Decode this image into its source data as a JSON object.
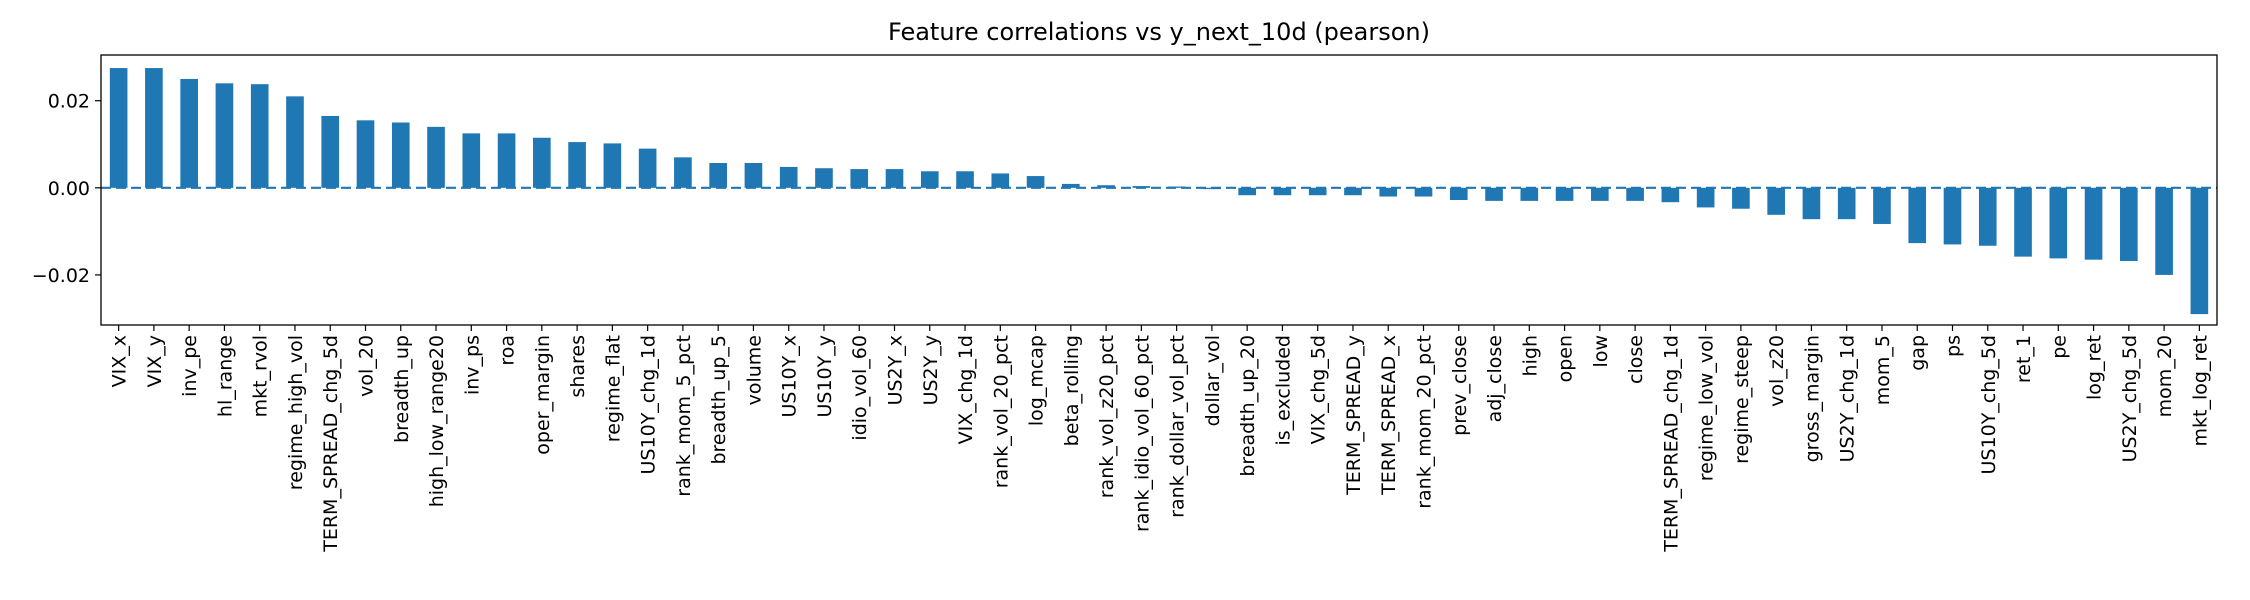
{
  "chart_data": {
    "type": "bar",
    "title": "Feature correlations vs y_next_10d (pearson)",
    "xlabel": "",
    "ylabel": "",
    "ylim": [
      -0.0315,
      0.0305
    ],
    "yticks": [
      0.02,
      0.0,
      -0.02
    ],
    "ytick_labels": [
      "0.02",
      "0.00",
      "−0.02"
    ],
    "reference_line": {
      "y": 0.0,
      "style": "dashed",
      "color": "#1f77b4"
    },
    "grid": false,
    "bar_color": "#1f77b4",
    "categories": [
      "VIX_x",
      "VIX_y",
      "inv_pe",
      "hl_range",
      "mkt_rvol",
      "regime_high_vol",
      "TERM_SPREAD_chg_5d",
      "vol_20",
      "breadth_up",
      "high_low_range20",
      "inv_ps",
      "roa",
      "oper_margin",
      "shares",
      "regime_flat",
      "US10Y_chg_1d",
      "rank_mom_5_pct",
      "breadth_up_5",
      "volume",
      "US10Y_x",
      "US10Y_y",
      "idio_vol_60",
      "US2Y_x",
      "US2Y_y",
      "VIX_chg_1d",
      "rank_vol_20_pct",
      "log_mcap",
      "beta_rolling",
      "rank_vol_z20_pct",
      "rank_idio_vol_60_pct",
      "rank_dollar_vol_pct",
      "dollar_vol",
      "breadth_up_20",
      "is_excluded",
      "VIX_chg_5d",
      "TERM_SPREAD_y",
      "TERM_SPREAD_x",
      "rank_mom_20_pct",
      "prev_close",
      "adj_close",
      "high",
      "open",
      "low",
      "close",
      "TERM_SPREAD_chg_1d",
      "regime_low_vol",
      "regime_steep",
      "vol_z20",
      "gross_margin",
      "US2Y_chg_1d",
      "mom_5",
      "gap",
      "ps",
      "US10Y_chg_5d",
      "ret_1",
      "pe",
      "log_ret",
      "US2Y_chg_5d",
      "mom_20",
      "mkt_log_ret"
    ],
    "values": [
      0.0275,
      0.0275,
      0.025,
      0.024,
      0.0238,
      0.021,
      0.0165,
      0.0155,
      0.015,
      0.014,
      0.0125,
      0.0125,
      0.0115,
      0.0105,
      0.0102,
      0.009,
      0.007,
      0.0057,
      0.0057,
      0.0048,
      0.0045,
      0.0043,
      0.0043,
      0.0038,
      0.0038,
      0.0033,
      0.0027,
      0.0009,
      0.0006,
      0.0004,
      0.0003,
      -0.0003,
      -0.0017,
      -0.0017,
      -0.0017,
      -0.0017,
      -0.002,
      -0.002,
      -0.0028,
      -0.003,
      -0.003,
      -0.003,
      -0.003,
      -0.003,
      -0.0033,
      -0.0045,
      -0.0048,
      -0.0062,
      -0.0072,
      -0.0072,
      -0.0083,
      -0.0127,
      -0.013,
      -0.0133,
      -0.0158,
      -0.0162,
      -0.0165,
      -0.0168,
      -0.02,
      -0.029
    ]
  }
}
